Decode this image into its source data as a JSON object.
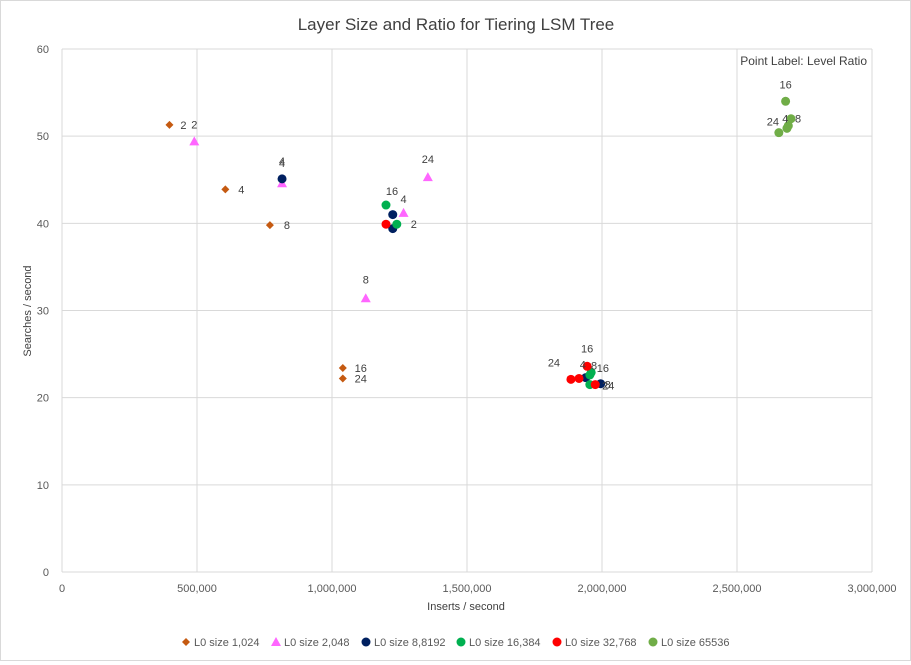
{
  "chart_data": {
    "type": "scatter",
    "title": "Layer Size and Ratio for Tiering LSM Tree",
    "xlabel": "Inserts / second",
    "ylabel": "Searches / second",
    "annotation": "Point Label: Level Ratio",
    "xlim": [
      0,
      3000000
    ],
    "ylim": [
      0,
      60
    ],
    "x_ticks": [
      0,
      500000,
      1000000,
      1500000,
      2000000,
      2500000,
      3000000
    ],
    "x_tick_labels": [
      "0",
      "500,000",
      "1,000,000",
      "1,500,000",
      "2,000,000",
      "2,500,000",
      "3,000,000"
    ],
    "y_ticks": [
      0,
      10,
      20,
      30,
      40,
      50,
      60
    ],
    "y_tick_labels": [
      "0",
      "10",
      "20",
      "30",
      "40",
      "50",
      "60"
    ],
    "grid": true,
    "legend_position": "bottom",
    "series": [
      {
        "name": "L0 size  1,024",
        "color": "#c55a11",
        "marker": "diamond",
        "points": [
          {
            "x": 398000,
            "y": 51.3,
            "label": "2"
          },
          {
            "x": 605000,
            "y": 43.9,
            "label": "4"
          },
          {
            "x": 770000,
            "y": 39.8,
            "label": "8"
          },
          {
            "x": 1040000,
            "y": 23.4,
            "label": "16"
          },
          {
            "x": 1040000,
            "y": 22.2,
            "label": "24"
          }
        ]
      },
      {
        "name": "L0 size 2,048",
        "color": "#ff66ff",
        "marker": "triangle",
        "points": [
          {
            "x": 490000,
            "y": 49.4,
            "label": "2"
          },
          {
            "x": 815000,
            "y": 44.6,
            "label": "4"
          },
          {
            "x": 1125000,
            "y": 31.4,
            "label": "8"
          },
          {
            "x": 1265000,
            "y": 41.2,
            "label": "4"
          },
          {
            "x": 1355000,
            "y": 45.3,
            "label": "24"
          }
        ]
      },
      {
        "name": "L0 size 8,8192",
        "color": "#002060",
        "marker": "circle",
        "points": [
          {
            "x": 815000,
            "y": 45.1,
            "label": "4"
          },
          {
            "x": 1225000,
            "y": 41.0,
            "label": ""
          },
          {
            "x": 1225000,
            "y": 39.4,
            "label": ""
          },
          {
            "x": 1940000,
            "y": 22.3,
            "label": "4"
          },
          {
            "x": 1995000,
            "y": 21.6,
            "label": "8"
          }
        ]
      },
      {
        "name": "L0 size 16,384",
        "color": "#00b050",
        "marker": "circle",
        "points": [
          {
            "x": 1200000,
            "y": 42.1,
            "label": "16"
          },
          {
            "x": 1240000,
            "y": 39.9,
            "label": "2"
          },
          {
            "x": 1955000,
            "y": 22.6,
            "label": "16"
          },
          {
            "x": 1960000,
            "y": 22.9,
            "label": ""
          },
          {
            "x": 1955000,
            "y": 21.5,
            "label": ""
          }
        ]
      },
      {
        "name": "L0 size 32,768",
        "color": "#ff0000",
        "marker": "circle",
        "points": [
          {
            "x": 1200000,
            "y": 39.9,
            "label": ""
          },
          {
            "x": 1945000,
            "y": 23.6,
            "label": "16"
          },
          {
            "x": 1885000,
            "y": 22.1,
            "label": "24"
          },
          {
            "x": 1915000,
            "y": 22.2,
            "label": "8"
          },
          {
            "x": 1975000,
            "y": 21.5,
            "label": "24"
          }
        ]
      },
      {
        "name": "L0 size 65536",
        "color": "#70ad47",
        "marker": "circle",
        "points": [
          {
            "x": 2680000,
            "y": 54.0,
            "label": "16"
          },
          {
            "x": 2700000,
            "y": 52.0,
            "label": "8"
          },
          {
            "x": 2690000,
            "y": 51.2,
            "label": "4"
          },
          {
            "x": 2685000,
            "y": 50.9,
            "label": ""
          },
          {
            "x": 2655000,
            "y": 50.4,
            "label": "24"
          }
        ]
      }
    ]
  }
}
